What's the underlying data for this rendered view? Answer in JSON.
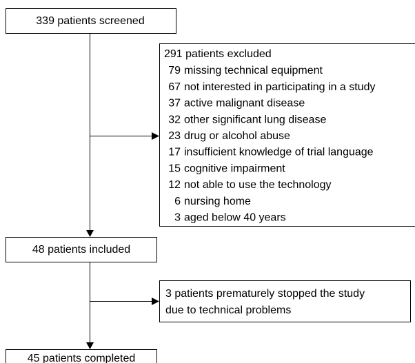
{
  "nodes": [
    {
      "label": "339 patients screened"
    },
    {
      "title": "291 patients excluded",
      "items": [
        {
          "count": 79,
          "label": "missing technical equipment"
        },
        {
          "count": 67,
          "label": "not interested in participating in a study"
        },
        {
          "count": 37,
          "label": "active malignant disease"
        },
        {
          "count": 32,
          "label": "other significant lung disease"
        },
        {
          "count": 23,
          "label": "drug or alcohol abuse"
        },
        {
          "count": 17,
          "label": "insufficient knowledge of trial language"
        },
        {
          "count": 15,
          "label": "cognitive impairment"
        },
        {
          "count": 12,
          "label": "not able to use the technology"
        },
        {
          "count": 6,
          "label": "nursing home"
        },
        {
          "count": 3,
          "label": "aged below 40 years"
        }
      ]
    },
    {
      "label": "48 patients included"
    },
    {
      "lines": [
        "3 patients prematurely stopped the study",
        "due to technical problems"
      ]
    },
    {
      "label": "45 patients completed"
    }
  ]
}
